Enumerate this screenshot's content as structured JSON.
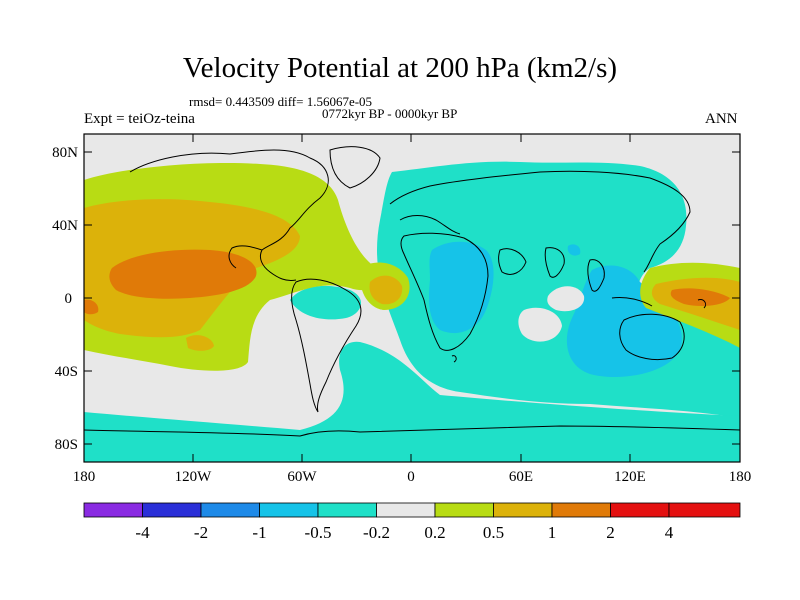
{
  "title": "Velocity Potential at 200 hPa (km2/s)",
  "stats": "rmsd= 0.443509  diff= 1.56067e-05",
  "period": "0772kyr BP - 0000kyr BP",
  "left_string": "Expt = teiOz-teina",
  "right_string": "ANN",
  "lat_labels": [
    "80N",
    "40N",
    "0",
    "40S",
    "80S"
  ],
  "lon_labels": [
    "180",
    "120W",
    "60W",
    "0",
    "60E",
    "120E",
    "180"
  ],
  "colorbar": {
    "labels": [
      "-4",
      "-2",
      "-1",
      "-0.5",
      "-0.2",
      "0.2",
      "0.5",
      "1",
      "2",
      "4"
    ],
    "colors": [
      "#8a2be2",
      "#2a2fd8",
      "#1e8ae8",
      "#16c3e8",
      "#1fe0c8",
      "#e8e8e8",
      "#b8dc14",
      "#dcb20a",
      "#e07a08",
      "#e41010"
    ]
  },
  "map_colors": {
    "background": "#e8e8e8",
    "negative_weak": "#1fe0c8",
    "negative_mid": "#16c3e8",
    "positive_weak": "#b8dc14",
    "positive_mid": "#dcb20a",
    "positive_strong": "#e07a08"
  }
}
